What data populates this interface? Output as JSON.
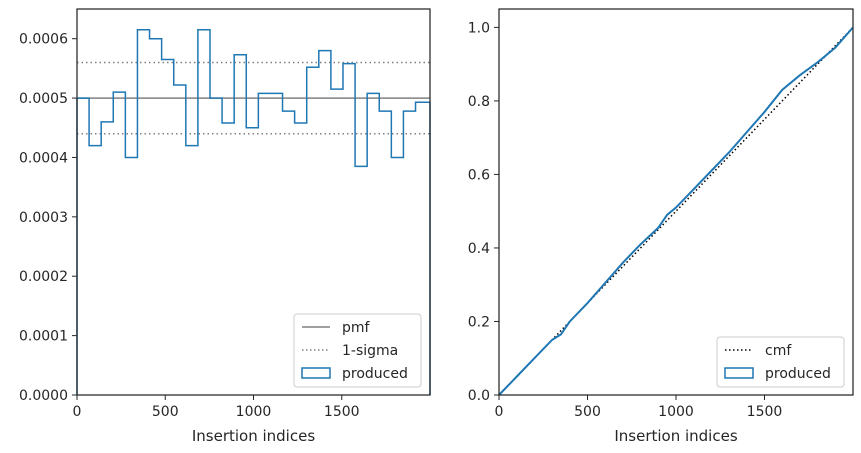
{
  "chart_data": [
    {
      "type": "histogram-step",
      "xlabel": "Insertion indices",
      "ylabel": "",
      "xlim": [
        0,
        2000
      ],
      "ylim": [
        0,
        0.00065
      ],
      "xticks": [
        {
          "value": 0,
          "label": "0"
        },
        {
          "value": 500,
          "label": "500"
        },
        {
          "value": 1000,
          "label": "1000"
        },
        {
          "value": 1500,
          "label": "1500"
        }
      ],
      "yticks": [
        {
          "value": 0,
          "label": "0.0000"
        },
        {
          "value": 0.0001,
          "label": "0.0001"
        },
        {
          "value": 0.0002,
          "label": "0.0002"
        },
        {
          "value": 0.0003,
          "label": "0.0003"
        },
        {
          "value": 0.0004,
          "label": "0.0004"
        },
        {
          "value": 0.0005,
          "label": "0.0005"
        },
        {
          "value": 0.0006,
          "label": "0.0006"
        }
      ],
      "pmf": 0.0005,
      "sigma_band": [
        0.00044,
        0.00056
      ],
      "bin_edges": [
        0,
        68.5,
        137,
        205.5,
        274,
        342.5,
        411,
        479.5,
        548,
        616.5,
        685,
        753.5,
        822,
        890.5,
        959,
        1027.5,
        1096,
        1164.5,
        1233,
        1301.5,
        1370,
        1438.5,
        1507,
        1575.5,
        1644,
        1712.5,
        1781,
        1849.5,
        1918,
        1986.5,
        2000
      ],
      "produced": [
        0.0005,
        0.00042,
        0.00046,
        0.00051,
        0.0004,
        0.000615,
        0.0006,
        0.000565,
        0.000522,
        0.00042,
        0.000615,
        0.0005,
        0.000458,
        0.000573,
        0.00045,
        0.000508,
        0.000508,
        0.000478,
        0.000458,
        0.000552,
        0.00058,
        0.000515,
        0.000558,
        0.000385,
        0.000508,
        0.000478,
        0.0004,
        0.000478,
        0.000493,
        0.000493
      ],
      "legend": {
        "placement": "lower right",
        "entries": [
          {
            "label": "pmf",
            "style": "solid",
            "color": "#808080"
          },
          {
            "label": "1-sigma",
            "style": "dotted",
            "color": "#808080"
          },
          {
            "label": "produced",
            "style": "patch",
            "color": "#1f77b4"
          }
        ]
      }
    },
    {
      "type": "line",
      "xlabel": "Insertion indices",
      "ylabel": "",
      "xlim": [
        0,
        2000
      ],
      "ylim": [
        0,
        1.05
      ],
      "xticks": [
        {
          "value": 0,
          "label": "0"
        },
        {
          "value": 500,
          "label": "500"
        },
        {
          "value": 1000,
          "label": "1000"
        },
        {
          "value": 1500,
          "label": "1500"
        }
      ],
      "yticks": [
        {
          "value": 0,
          "label": "0.0"
        },
        {
          "value": 0.2,
          "label": "0.2"
        },
        {
          "value": 0.4,
          "label": "0.4"
        },
        {
          "value": 0.6,
          "label": "0.6"
        },
        {
          "value": 0.8,
          "label": "0.8"
        },
        {
          "value": 1.0,
          "label": "1.0"
        }
      ],
      "cmf": {
        "x": [
          0,
          2000
        ],
        "y": [
          0,
          1
        ]
      },
      "produced": {
        "x": [
          0,
          100,
          200,
          300,
          350,
          400,
          500,
          600,
          700,
          800,
          900,
          950,
          1000,
          1100,
          1200,
          1300,
          1400,
          1500,
          1600,
          1700,
          1800,
          1900,
          2000
        ],
        "y": [
          0,
          0.05,
          0.1,
          0.15,
          0.165,
          0.2,
          0.25,
          0.305,
          0.36,
          0.41,
          0.455,
          0.49,
          0.51,
          0.56,
          0.61,
          0.66,
          0.715,
          0.77,
          0.83,
          0.87,
          0.905,
          0.945,
          1.0
        ]
      },
      "legend": {
        "placement": "lower right",
        "entries": [
          {
            "label": "cmf",
            "style": "dotted",
            "color": "#000000"
          },
          {
            "label": "produced",
            "style": "patch",
            "color": "#1f77b4"
          }
        ]
      }
    }
  ]
}
